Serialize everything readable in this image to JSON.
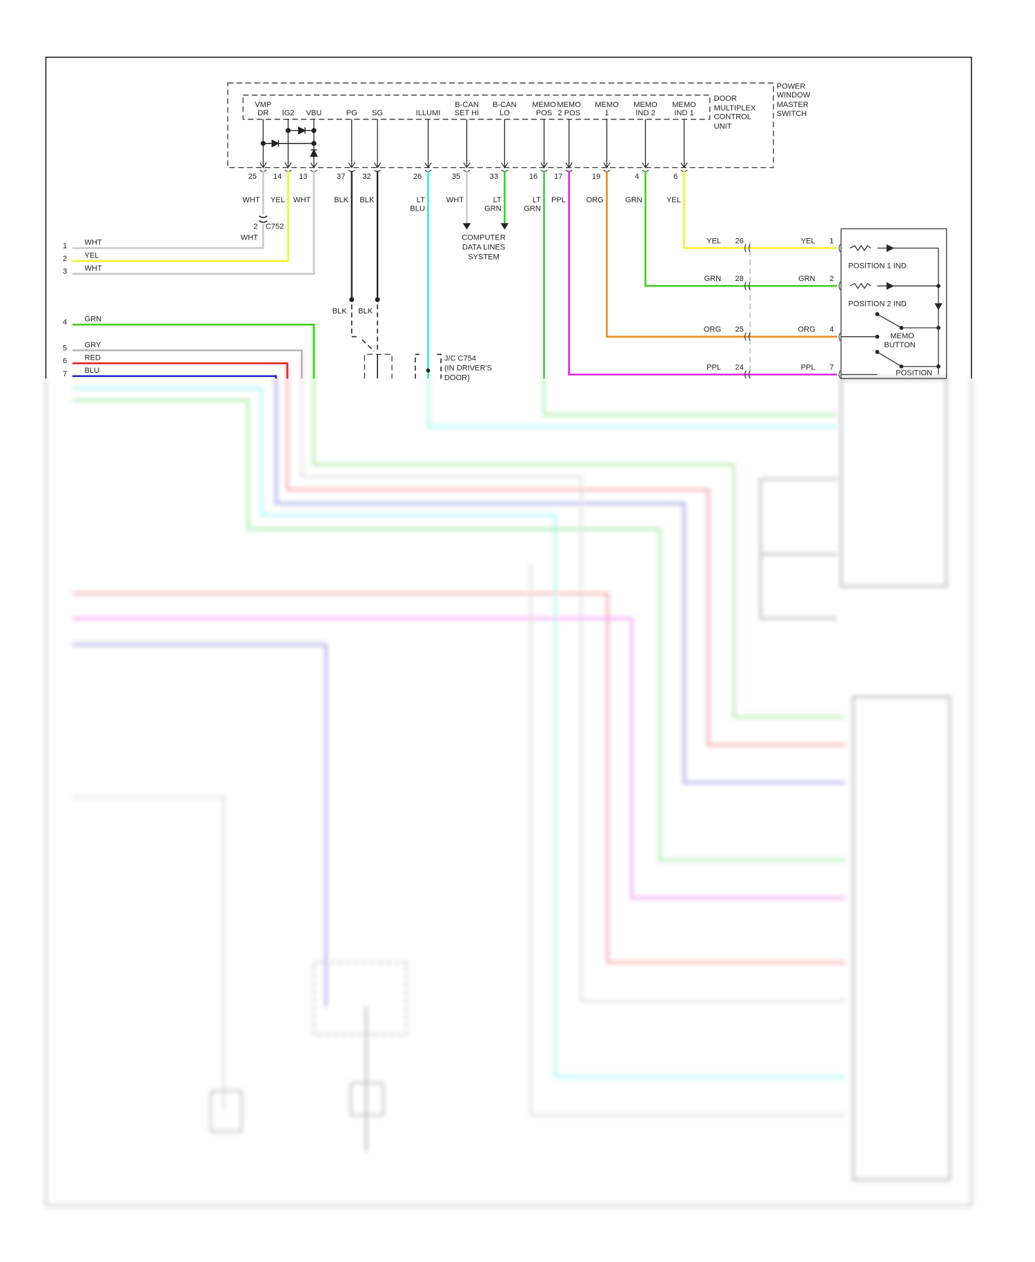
{
  "module": {
    "outer_label": [
      "POWER",
      "WINDOW",
      "MASTER",
      "SWITCH"
    ],
    "inner_label": [
      "DOOR",
      "MULTIPLEX",
      "CONTROL",
      "UNIT"
    ]
  },
  "pins": [
    {
      "name": [
        "VMP",
        "DR"
      ],
      "pin": "25",
      "wire": "WHT",
      "color": "#c8c8c8"
    },
    {
      "name": [
        "",
        "IG2"
      ],
      "pin": "14",
      "wire": "YEL",
      "color": "#f2f224"
    },
    {
      "name": [
        "",
        "VBU"
      ],
      "pin": "13",
      "wire": "WHT",
      "color": "#c8c8c8"
    },
    {
      "name": [
        "",
        "PG"
      ],
      "pin": "37",
      "wire": "BLK",
      "color": "#222222"
    },
    {
      "name": [
        "",
        "SG"
      ],
      "pin": "32",
      "wire": "BLK",
      "color": "#222222"
    },
    {
      "name": [
        "",
        "ILLUMI"
      ],
      "pin": "26",
      "wire": "LT BLU",
      "color": "#2ee6e6"
    },
    {
      "name": [
        "B-CAN",
        "SET HI"
      ],
      "pin": "35",
      "wire": "WHT",
      "color": "#c8c8c8"
    },
    {
      "name": [
        "B-CAN",
        "LO"
      ],
      "pin": "33",
      "wire": "LT GRN",
      "color": "#33cc33"
    },
    {
      "name": [
        "MEMO",
        "POS"
      ],
      "pin": "16",
      "wire": "LT GRN",
      "color": "#33cc33"
    },
    {
      "name": [
        "MEMO",
        "2 POS"
      ],
      "pin": "17",
      "wire": "PPL",
      "color": "#dd22dd"
    },
    {
      "name": [
        "MEMO",
        "1"
      ],
      "pin": "19",
      "wire": "ORG",
      "color": "#e88a20"
    },
    {
      "name": [
        "MEMO",
        "IND 2"
      ],
      "pin": "4",
      "wire": "GRN",
      "color": "#44cc22"
    },
    {
      "name": [
        "MEMO",
        "IND 1"
      ],
      "pin": "6",
      "wire": "YEL",
      "color": "#f2f224"
    }
  ],
  "connector_c752": {
    "pin": "2",
    "name": "C752",
    "wire": "WHT"
  },
  "ground_labels": [
    "BLK",
    "BLK"
  ],
  "jc_c754": [
    "J/C C754",
    "(IN DRIVER'S",
    "DOOR)"
  ],
  "computer_data_lines": [
    "COMPUTER",
    "DATA LINES",
    "SYSTEM"
  ],
  "left_rows": [
    {
      "num": "1",
      "wire": "WHT",
      "color": "#c8c8c8"
    },
    {
      "num": "2",
      "wire": "YEL",
      "color": "#f2f224"
    },
    {
      "num": "3",
      "wire": "WHT",
      "color": "#c8c8c8"
    },
    {
      "num": "4",
      "wire": "GRN",
      "color": "#44cc22"
    },
    {
      "num": "5",
      "wire": "GRY",
      "color": "#b4b4b4"
    },
    {
      "num": "6",
      "wire": "RED",
      "color": "#e82020"
    },
    {
      "num": "7",
      "wire": "BLU",
      "color": "#2222cc"
    }
  ],
  "memory_switch": {
    "rows": [
      {
        "wire_a": "YEL",
        "pin_a": "26",
        "wire_b": "YEL",
        "pin_b": "1",
        "color": "#f2f224"
      },
      {
        "wire_a": "GRN",
        "pin_a": "28",
        "wire_b": "GRN",
        "pin_b": "2",
        "color": "#44cc22"
      },
      {
        "wire_a": "ORG",
        "pin_a": "25",
        "wire_b": "ORG",
        "pin_b": "4",
        "color": "#e88a20"
      },
      {
        "wire_a": "PPL",
        "pin_a": "24",
        "wire_b": "PPL",
        "pin_b": "7",
        "color": "#dd22dd"
      }
    ],
    "labels": {
      "pos1": "POSITION 1 IND",
      "pos2": "POSITION 2 IND",
      "memo": [
        "MEMO",
        "BUTTON"
      ],
      "position": "POSITION"
    }
  }
}
